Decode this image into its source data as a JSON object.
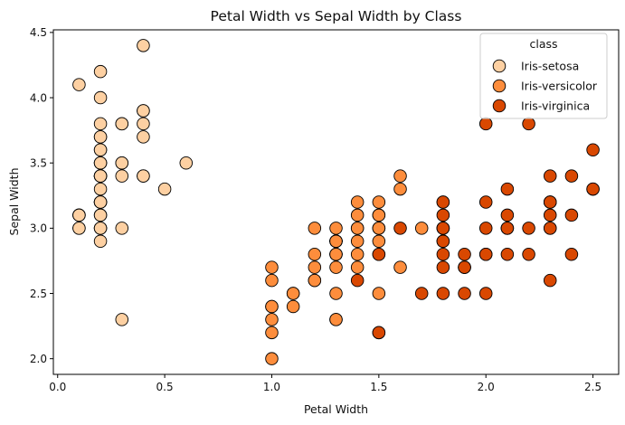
{
  "chart_data": {
    "type": "scatter",
    "title": "Petal Width vs Sepal Width by Class",
    "xlabel": "Petal Width",
    "ylabel": "Sepal Width",
    "xlim": [
      -0.02,
      2.62
    ],
    "ylim": [
      1.88,
      4.52
    ],
    "xticks": [
      0.0,
      0.5,
      1.0,
      1.5,
      2.0,
      2.5
    ],
    "xtick_labels": [
      "0.0",
      "0.5",
      "1.0",
      "1.5",
      "2.0",
      "2.5"
    ],
    "yticks": [
      2.0,
      2.5,
      3.0,
      3.5,
      4.0,
      4.5
    ],
    "ytick_labels": [
      "2.0",
      "2.5",
      "3.0",
      "3.5",
      "4.0",
      "4.5"
    ],
    "grid": false,
    "legend": {
      "title": "class",
      "position": "top-right"
    },
    "series": [
      {
        "name": "Iris-setosa",
        "color": "#fdd0a2",
        "points": [
          [
            0.2,
            3.5
          ],
          [
            0.2,
            3.0
          ],
          [
            0.2,
            3.2
          ],
          [
            0.2,
            3.1
          ],
          [
            0.2,
            3.6
          ],
          [
            0.4,
            3.9
          ],
          [
            0.3,
            3.4
          ],
          [
            0.2,
            3.4
          ],
          [
            0.2,
            2.9
          ],
          [
            0.1,
            3.1
          ],
          [
            0.2,
            3.7
          ],
          [
            0.2,
            3.4
          ],
          [
            0.1,
            3.0
          ],
          [
            0.1,
            3.0
          ],
          [
            0.2,
            4.0
          ],
          [
            0.4,
            4.4
          ],
          [
            0.4,
            3.9
          ],
          [
            0.3,
            3.5
          ],
          [
            0.3,
            3.8
          ],
          [
            0.3,
            3.8
          ],
          [
            0.2,
            3.4
          ],
          [
            0.4,
            3.7
          ],
          [
            0.2,
            3.6
          ],
          [
            0.5,
            3.3
          ],
          [
            0.2,
            3.4
          ],
          [
            0.2,
            3.0
          ],
          [
            0.4,
            3.4
          ],
          [
            0.2,
            3.5
          ],
          [
            0.2,
            3.4
          ],
          [
            0.2,
            3.2
          ],
          [
            0.2,
            3.1
          ],
          [
            0.4,
            3.4
          ],
          [
            0.1,
            4.1
          ],
          [
            0.2,
            4.2
          ],
          [
            0.1,
            3.1
          ],
          [
            0.2,
            3.2
          ],
          [
            0.2,
            3.5
          ],
          [
            0.1,
            3.1
          ],
          [
            0.2,
            3.0
          ],
          [
            0.2,
            3.4
          ],
          [
            0.3,
            3.5
          ],
          [
            0.3,
            2.3
          ],
          [
            0.2,
            3.2
          ],
          [
            0.6,
            3.5
          ],
          [
            0.4,
            3.8
          ],
          [
            0.3,
            3.0
          ],
          [
            0.2,
            3.8
          ],
          [
            0.2,
            3.2
          ],
          [
            0.2,
            3.7
          ],
          [
            0.2,
            3.3
          ]
        ]
      },
      {
        "name": "Iris-versicolor",
        "color": "#fd8d3c",
        "points": [
          [
            1.4,
            3.2
          ],
          [
            1.5,
            3.2
          ],
          [
            1.5,
            3.1
          ],
          [
            1.3,
            2.3
          ],
          [
            1.5,
            2.8
          ],
          [
            1.3,
            2.8
          ],
          [
            1.6,
            3.3
          ],
          [
            1.0,
            2.4
          ],
          [
            1.3,
            2.9
          ],
          [
            1.4,
            2.7
          ],
          [
            1.0,
            2.0
          ],
          [
            1.5,
            3.0
          ],
          [
            1.0,
            2.2
          ],
          [
            1.4,
            2.9
          ],
          [
            1.3,
            2.9
          ],
          [
            1.4,
            3.1
          ],
          [
            1.5,
            3.0
          ],
          [
            1.0,
            2.7
          ],
          [
            1.5,
            2.2
          ],
          [
            1.1,
            2.5
          ],
          [
            1.8,
            3.2
          ],
          [
            1.3,
            2.8
          ],
          [
            1.5,
            2.5
          ],
          [
            1.2,
            2.8
          ],
          [
            1.3,
            2.9
          ],
          [
            1.4,
            3.0
          ],
          [
            1.4,
            2.8
          ],
          [
            1.7,
            3.0
          ],
          [
            1.5,
            2.9
          ],
          [
            1.0,
            2.6
          ],
          [
            1.1,
            2.4
          ],
          [
            1.0,
            2.4
          ],
          [
            1.2,
            2.7
          ],
          [
            1.6,
            2.7
          ],
          [
            1.5,
            3.0
          ],
          [
            1.6,
            3.4
          ],
          [
            1.5,
            3.1
          ],
          [
            1.3,
            2.3
          ],
          [
            1.3,
            3.0
          ],
          [
            1.3,
            2.5
          ],
          [
            1.2,
            2.6
          ],
          [
            1.4,
            3.0
          ],
          [
            1.2,
            2.6
          ],
          [
            1.0,
            2.3
          ],
          [
            1.3,
            2.7
          ],
          [
            1.2,
            3.0
          ],
          [
            1.3,
            2.9
          ],
          [
            1.3,
            2.9
          ],
          [
            1.1,
            2.5
          ],
          [
            1.3,
            2.8
          ]
        ]
      },
      {
        "name": "Iris-virginica",
        "color": "#d94801",
        "points": [
          [
            2.5,
            3.3
          ],
          [
            1.9,
            2.7
          ],
          [
            2.1,
            3.0
          ],
          [
            1.8,
            2.9
          ],
          [
            2.2,
            3.0
          ],
          [
            2.1,
            3.0
          ],
          [
            1.7,
            2.5
          ],
          [
            1.8,
            2.9
          ],
          [
            1.8,
            2.5
          ],
          [
            2.5,
            3.6
          ],
          [
            2.0,
            3.2
          ],
          [
            1.9,
            2.7
          ],
          [
            2.1,
            3.0
          ],
          [
            2.0,
            2.5
          ],
          [
            2.4,
            2.8
          ],
          [
            2.3,
            3.2
          ],
          [
            1.8,
            3.0
          ],
          [
            2.2,
            3.8
          ],
          [
            2.3,
            2.6
          ],
          [
            1.5,
            2.2
          ],
          [
            2.3,
            3.2
          ],
          [
            2.0,
            2.8
          ],
          [
            2.0,
            2.8
          ],
          [
            1.8,
            2.7
          ],
          [
            2.1,
            3.3
          ],
          [
            1.8,
            3.2
          ],
          [
            1.8,
            2.8
          ],
          [
            1.8,
            3.0
          ],
          [
            2.1,
            2.8
          ],
          [
            1.6,
            3.0
          ],
          [
            1.9,
            2.8
          ],
          [
            2.0,
            3.8
          ],
          [
            2.2,
            2.8
          ],
          [
            1.5,
            2.8
          ],
          [
            1.4,
            2.6
          ],
          [
            2.3,
            3.0
          ],
          [
            2.4,
            3.4
          ],
          [
            1.8,
            3.1
          ],
          [
            1.8,
            3.0
          ],
          [
            2.1,
            3.1
          ],
          [
            2.4,
            3.1
          ],
          [
            2.3,
            3.1
          ],
          [
            1.9,
            2.7
          ],
          [
            2.3,
            3.2
          ],
          [
            2.5,
            3.3
          ],
          [
            2.3,
            3.0
          ],
          [
            1.9,
            2.5
          ],
          [
            2.0,
            3.0
          ],
          [
            2.3,
            3.4
          ],
          [
            1.8,
            3.0
          ]
        ]
      }
    ]
  }
}
